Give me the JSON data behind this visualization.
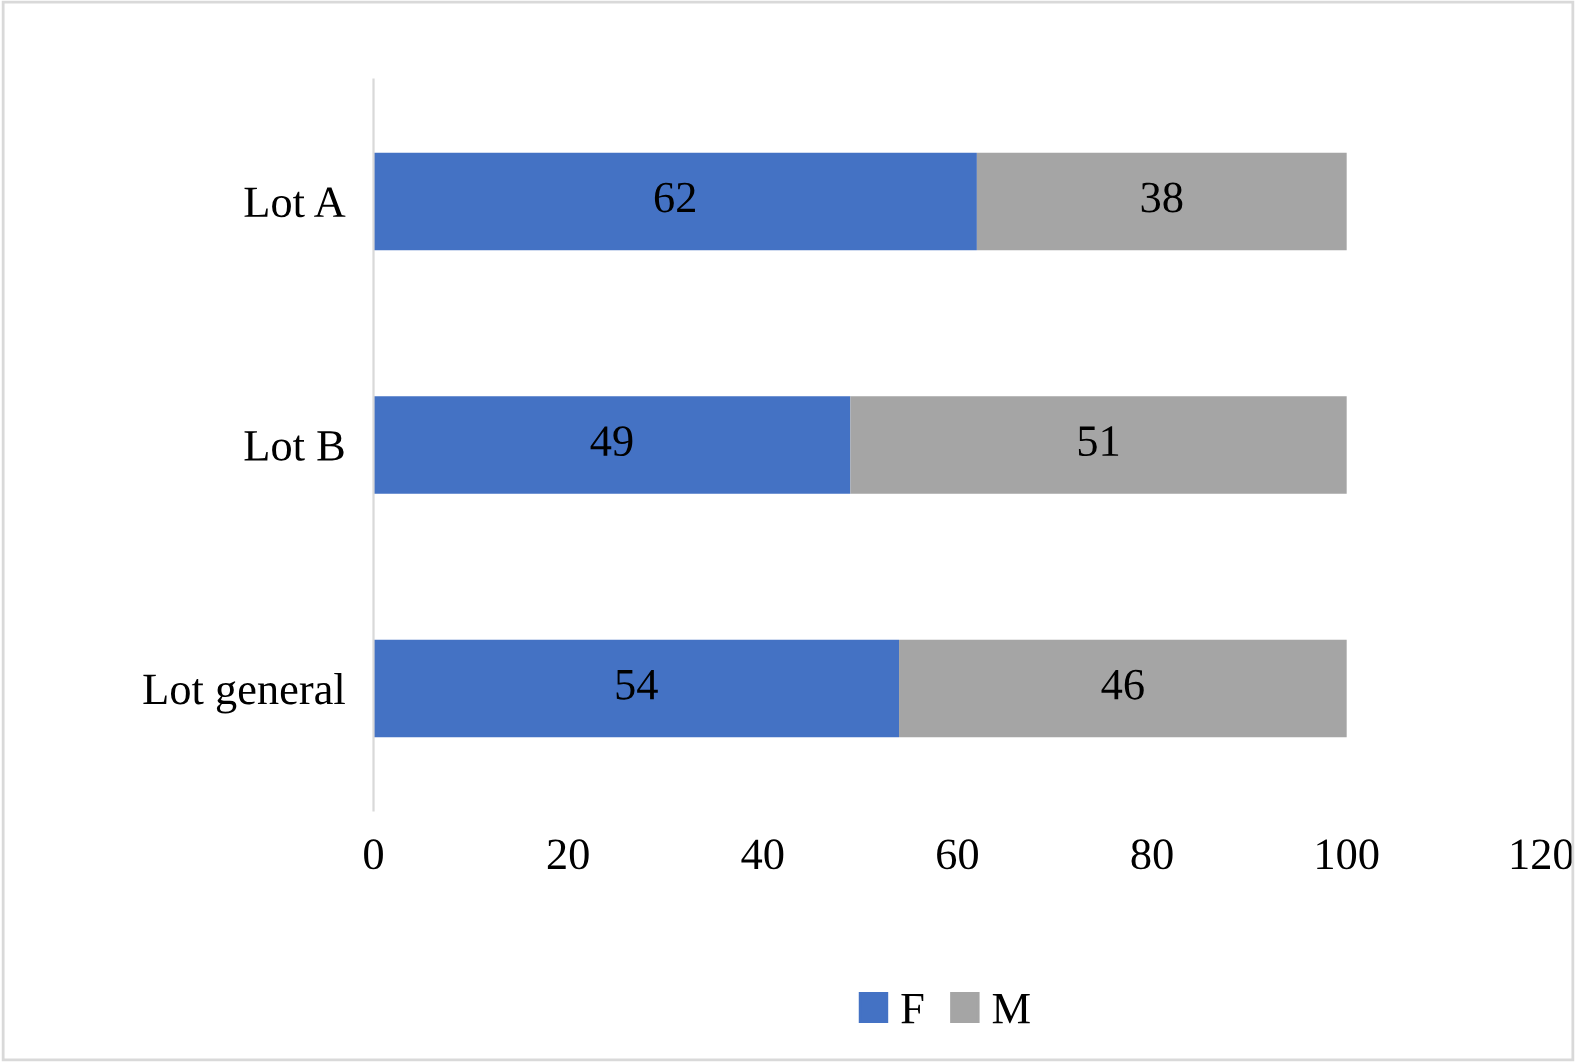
{
  "chart_data": {
    "type": "bar",
    "orientation": "horizontal",
    "stacked": true,
    "categories": [
      "Lot A",
      "Lot B",
      "Lot general"
    ],
    "series": [
      {
        "name": "F",
        "color": "#4472c4",
        "values": [
          62,
          49,
          54
        ]
      },
      {
        "name": "M",
        "color": "#a5a5a5",
        "values": [
          38,
          51,
          46
        ]
      }
    ],
    "xlim": [
      0,
      120
    ],
    "xticks": [
      0,
      20,
      40,
      60,
      80,
      100,
      120
    ],
    "data_labels": true,
    "legend": "bottom",
    "grid": false
  }
}
